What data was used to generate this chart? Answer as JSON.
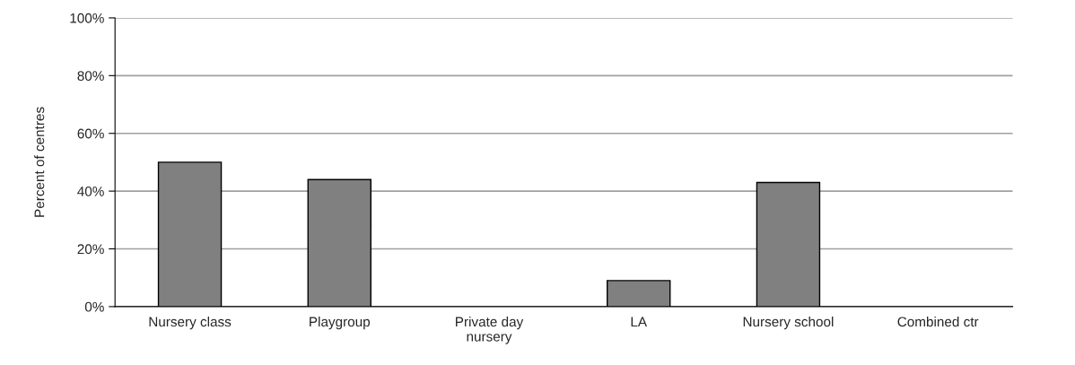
{
  "chart_data": {
    "type": "bar",
    "ylabel": "Percent of centres",
    "categories": [
      "Nursery class",
      "Playgroup",
      "Private day nursery",
      "LA",
      "Nursery school",
      "Combined ctr"
    ],
    "values": [
      50,
      44,
      0,
      9,
      43,
      0
    ],
    "color": "#808080",
    "ylim": [
      0,
      100
    ],
    "yticks": [
      {
        "value": 0,
        "label": "0%"
      },
      {
        "value": 20,
        "label": "20%"
      },
      {
        "value": 40,
        "label": "40%"
      },
      {
        "value": 60,
        "label": "60%"
      },
      {
        "value": 80,
        "label": "80%"
      },
      {
        "value": 100,
        "label": "100%"
      }
    ],
    "grid": "y"
  }
}
